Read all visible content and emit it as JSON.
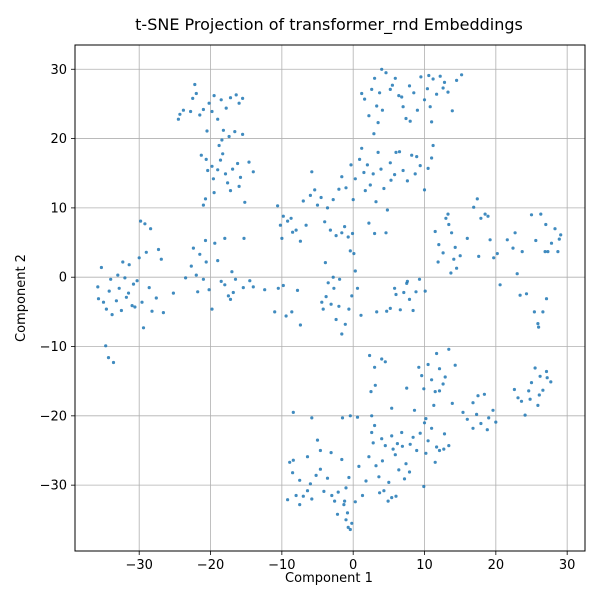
{
  "chart_data": {
    "type": "scatter",
    "title": "t-SNE Projection of transformer_rnd Embeddings",
    "xlabel": "Component 1",
    "ylabel": "Component 2",
    "xlim": [
      -39,
      32.5
    ],
    "ylim": [
      -39.5,
      33.5
    ],
    "xticks": [
      -30,
      -20,
      -10,
      0,
      10,
      20,
      30
    ],
    "yticks": [
      -30,
      -20,
      -10,
      0,
      10,
      20,
      30
    ],
    "grid": true,
    "point_color": "#1f77b4",
    "points": [
      [
        -24.5,
        22.8
      ],
      [
        -24.3,
        23.5
      ],
      [
        -23.8,
        24.1
      ],
      [
        -22.5,
        25.8
      ],
      [
        -22.2,
        27.8
      ],
      [
        -22.0,
        26.5
      ],
      [
        -21.5,
        23.4
      ],
      [
        -21.0,
        24.2
      ],
      [
        -20.2,
        25.1
      ],
      [
        -19.8,
        23.9
      ],
      [
        -19.5,
        26.2
      ],
      [
        -18.5,
        25.6
      ],
      [
        -17.8,
        24.4
      ],
      [
        -17.2,
        25.9
      ],
      [
        -16.4,
        26.3
      ],
      [
        -16.0,
        25.1
      ],
      [
        -15.5,
        25.8
      ],
      [
        -19.0,
        22.8
      ],
      [
        -20.5,
        21.1
      ],
      [
        -22.8,
        23.9
      ],
      [
        -21.3,
        17.6
      ],
      [
        -20.6,
        17.0
      ],
      [
        -20.4,
        15.4
      ],
      [
        -19.8,
        16.0
      ],
      [
        -19.6,
        14.2
      ],
      [
        -19.0,
        15.5
      ],
      [
        -18.6,
        16.9
      ],
      [
        -18.3,
        17.8
      ],
      [
        -17.9,
        14.9
      ],
      [
        -17.6,
        13.6
      ],
      [
        -17.2,
        12.5
      ],
      [
        -16.9,
        15.6
      ],
      [
        -16.2,
        16.4
      ],
      [
        -15.8,
        14.4
      ],
      [
        -18.2,
        21.2
      ],
      [
        -17.4,
        20.3
      ],
      [
        -16.6,
        21.0
      ],
      [
        -15.5,
        20.6
      ],
      [
        -20.7,
        11.3
      ],
      [
        -21.0,
        10.4
      ],
      [
        -18.8,
        19.0
      ],
      [
        -19.5,
        12.2
      ],
      [
        -16.0,
        13.1
      ],
      [
        -14.6,
        16.6
      ],
      [
        -14.0,
        15.2
      ],
      [
        -15.2,
        10.8
      ],
      [
        -18.4,
        19.8
      ],
      [
        -35.8,
        -1.4
      ],
      [
        -35.3,
        1.4
      ],
      [
        -35.0,
        -3.6
      ],
      [
        -34.6,
        -4.6
      ],
      [
        -34.2,
        -2.0
      ],
      [
        -34.0,
        -0.3
      ],
      [
        -33.8,
        -5.4
      ],
      [
        -33.2,
        -3.4
      ],
      [
        -32.8,
        -1.6
      ],
      [
        -32.5,
        -4.8
      ],
      [
        -32.3,
        2.2
      ],
      [
        -32.0,
        -0.1
      ],
      [
        -31.8,
        -2.9
      ],
      [
        -31.4,
        1.8
      ],
      [
        -31.0,
        -4.1
      ],
      [
        -30.8,
        -1.0
      ],
      [
        -30.3,
        -0.5
      ],
      [
        -30.0,
        2.8
      ],
      [
        -29.6,
        -3.6
      ],
      [
        -29.4,
        -7.3
      ],
      [
        -29.0,
        3.6
      ],
      [
        -28.6,
        -1.5
      ],
      [
        -28.2,
        -4.9
      ],
      [
        -27.6,
        -3.0
      ],
      [
        -27.3,
        4.0
      ],
      [
        -26.9,
        2.6
      ],
      [
        -26.6,
        -5.1
      ],
      [
        -29.8,
        8.1
      ],
      [
        -29.2,
        7.7
      ],
      [
        -28.4,
        7.0
      ],
      [
        -34.7,
        -9.9
      ],
      [
        -34.3,
        -11.6
      ],
      [
        -33.6,
        -12.3
      ],
      [
        -30.6,
        -4.3
      ],
      [
        -31.5,
        -2.3
      ],
      [
        -33.0,
        0.3
      ],
      [
        -35.7,
        -3.1
      ],
      [
        -22.7,
        1.6
      ],
      [
        -22.0,
        0.3
      ],
      [
        -21.5,
        3.3
      ],
      [
        -21.0,
        -0.3
      ],
      [
        -20.6,
        2.2
      ],
      [
        -20.2,
        -1.8
      ],
      [
        -19.8,
        -4.6
      ],
      [
        -19.4,
        4.9
      ],
      [
        -19.0,
        2.4
      ],
      [
        -18.5,
        -0.6
      ],
      [
        -18.0,
        -1.1
      ],
      [
        -17.5,
        -2.7
      ],
      [
        -17.0,
        0.8
      ],
      [
        -16.5,
        -0.3
      ],
      [
        -15.4,
        -1.5
      ],
      [
        -14.5,
        -0.5
      ],
      [
        -14.0,
        -1.4
      ],
      [
        -22.4,
        4.2
      ],
      [
        -20.7,
        5.3
      ],
      [
        -18.0,
        5.6
      ],
      [
        -21.8,
        -2.1
      ],
      [
        -23.5,
        -0.1
      ],
      [
        -25.2,
        -2.3
      ],
      [
        -17.2,
        -3.2
      ],
      [
        -15.3,
        5.6
      ],
      [
        -16.8,
        -2.2
      ],
      [
        -10.6,
        10.3
      ],
      [
        -10.2,
        7.5
      ],
      [
        -9.8,
        8.8
      ],
      [
        -9.2,
        8.1
      ],
      [
        -8.7,
        8.5
      ],
      [
        -8.0,
        6.8
      ],
      [
        -7.4,
        5.2
      ],
      [
        -6.6,
        7.5
      ],
      [
        -6.0,
        11.8
      ],
      [
        -5.4,
        12.6
      ],
      [
        -5.0,
        10.4
      ],
      [
        -4.5,
        11.5
      ],
      [
        -4.0,
        8.0
      ],
      [
        -3.6,
        10.0
      ],
      [
        -3.2,
        6.8
      ],
      [
        -2.8,
        11.2
      ],
      [
        -2.4,
        6.0
      ],
      [
        -2.0,
        12.7
      ],
      [
        -1.6,
        6.4
      ],
      [
        -7.0,
        11.0
      ],
      [
        -5.8,
        15.2
      ],
      [
        -8.5,
        6.5
      ],
      [
        -10.0,
        5.6
      ],
      [
        -1.2,
        7.3
      ],
      [
        -12.4,
        -1.8
      ],
      [
        -11.0,
        -5.0
      ],
      [
        -10.5,
        -1.6
      ],
      [
        -9.8,
        -1.2
      ],
      [
        -9.4,
        -5.6
      ],
      [
        -8.6,
        -5.0
      ],
      [
        -7.8,
        -1.9
      ],
      [
        -7.4,
        -6.9
      ],
      [
        -4.2,
        -4.6
      ],
      [
        -3.8,
        -2.8
      ],
      [
        -3.5,
        -0.8
      ],
      [
        -3.1,
        -3.9
      ],
      [
        -2.7,
        -1.6
      ],
      [
        -2.4,
        -6.1
      ],
      [
        -2.0,
        -4.2
      ],
      [
        -1.6,
        -8.2
      ],
      [
        -1.1,
        -6.8
      ],
      [
        -0.6,
        -4.6
      ],
      [
        -0.2,
        -2.7
      ],
      [
        0.1,
        3.4
      ],
      [
        0.3,
        0.9
      ],
      [
        0.6,
        -1.6
      ],
      [
        1.1,
        -5.5
      ],
      [
        -0.7,
        5.8
      ],
      [
        -3.9,
        2.1
      ],
      [
        -1.9,
        -0.3
      ],
      [
        -2.8,
        0.0
      ],
      [
        -4.4,
        -3.6
      ],
      [
        -1.6,
        14.5
      ],
      [
        -1.0,
        12.9
      ],
      [
        -0.3,
        16.2
      ],
      [
        0.3,
        14.2
      ],
      [
        0.9,
        17.0
      ],
      [
        1.5,
        15.1
      ],
      [
        2.0,
        16.2
      ],
      [
        2.4,
        13.3
      ],
      [
        2.8,
        14.9
      ],
      [
        3.2,
        10.9
      ],
      [
        3.5,
        18.0
      ],
      [
        3.9,
        15.6
      ],
      [
        4.3,
        12.8
      ],
      [
        4.8,
        9.7
      ],
      [
        5.2,
        16.5
      ],
      [
        5.8,
        14.8
      ],
      [
        6.5,
        18.1
      ],
      [
        7.0,
        15.4
      ],
      [
        7.6,
        13.9
      ],
      [
        8.2,
        17.6
      ],
      [
        8.7,
        14.9
      ],
      [
        9.4,
        16.1
      ],
      [
        10.0,
        12.6
      ],
      [
        10.5,
        15.7
      ],
      [
        11.0,
        17.2
      ],
      [
        0.0,
        11.2
      ],
      [
        1.2,
        18.6
      ],
      [
        2.2,
        7.8
      ],
      [
        3.0,
        6.3
      ],
      [
        4.6,
        6.4
      ],
      [
        -0.1,
        6.3
      ],
      [
        -0.4,
        3.8
      ],
      [
        1.7,
        12.5
      ],
      [
        6.0,
        18.0
      ],
      [
        8.9,
        17.4
      ],
      [
        5.3,
        14.0
      ],
      [
        1.6,
        25.7
      ],
      [
        2.2,
        23.3
      ],
      [
        2.6,
        27.1
      ],
      [
        3.0,
        28.7
      ],
      [
        3.3,
        24.7
      ],
      [
        3.7,
        26.6
      ],
      [
        4.1,
        24.1
      ],
      [
        4.6,
        29.5
      ],
      [
        5.2,
        27.1
      ],
      [
        5.9,
        28.7
      ],
      [
        6.4,
        26.2
      ],
      [
        7.0,
        24.6
      ],
      [
        7.4,
        22.9
      ],
      [
        8.0,
        22.5
      ],
      [
        8.5,
        26.6
      ],
      [
        9.0,
        24.1
      ],
      [
        2.9,
        20.7
      ],
      [
        4.0,
        30.0
      ],
      [
        6.8,
        26.0
      ],
      [
        3.5,
        22.3
      ],
      [
        1.2,
        26.5
      ],
      [
        7.9,
        27.6
      ],
      [
        5.5,
        27.7
      ],
      [
        9.5,
        28.9
      ],
      [
        10.0,
        25.6
      ],
      [
        10.4,
        27.2
      ],
      [
        10.8,
        24.6
      ],
      [
        11.2,
        28.6
      ],
      [
        11.7,
        26.4
      ],
      [
        12.2,
        29.0
      ],
      [
        12.8,
        28.1
      ],
      [
        13.3,
        26.7
      ],
      [
        13.9,
        24.0
      ],
      [
        14.5,
        28.4
      ],
      [
        11.0,
        22.4
      ],
      [
        15.2,
        29.2
      ],
      [
        10.6,
        29.1
      ],
      [
        12.6,
        27.3
      ],
      [
        11.2,
        19.0
      ],
      [
        11.5,
        6.6
      ],
      [
        12.0,
        4.7
      ],
      [
        13.0,
        8.5
      ],
      [
        13.4,
        7.6
      ],
      [
        13.8,
        6.4
      ],
      [
        14.3,
        4.3
      ],
      [
        15.0,
        3.1
      ],
      [
        13.7,
        0.6
      ],
      [
        14.1,
        2.6
      ],
      [
        12.6,
        3.5
      ],
      [
        11.9,
        2.2
      ],
      [
        13.3,
        9.1
      ],
      [
        16.0,
        5.6
      ],
      [
        14.5,
        1.3
      ],
      [
        16.9,
        10.1
      ],
      [
        17.4,
        11.3
      ],
      [
        17.9,
        8.5
      ],
      [
        18.5,
        9.1
      ],
      [
        19.2,
        5.4
      ],
      [
        19.7,
        2.8
      ],
      [
        20.2,
        3.4
      ],
      [
        20.6,
        -1.1
      ],
      [
        21.6,
        5.4
      ],
      [
        22.4,
        4.2
      ],
      [
        23.0,
        0.5
      ],
      [
        23.4,
        -2.6
      ],
      [
        23.7,
        3.7
      ],
      [
        22.7,
        6.4
      ],
      [
        24.3,
        -2.4
      ],
      [
        25.0,
        9.0
      ],
      [
        17.6,
        3.0
      ],
      [
        18.9,
        8.8
      ],
      [
        25.4,
        -5.0
      ],
      [
        25.9,
        -6.7
      ],
      [
        26.3,
        9.1
      ],
      [
        26.6,
        -5.0
      ],
      [
        27.0,
        7.6
      ],
      [
        27.3,
        3.7
      ],
      [
        27.8,
        4.9
      ],
      [
        28.3,
        7.0
      ],
      [
        28.7,
        3.7
      ],
      [
        29.1,
        6.1
      ],
      [
        26.0,
        -7.2
      ],
      [
        25.6,
        5.3
      ],
      [
        27.1,
        -3.1
      ],
      [
        28.9,
        5.5
      ],
      [
        26.9,
        3.7
      ],
      [
        6.0,
        -2.5
      ],
      [
        6.6,
        -4.7
      ],
      [
        7.1,
        -2.2
      ],
      [
        7.5,
        -0.9
      ],
      [
        7.9,
        -3.2
      ],
      [
        8.4,
        -4.8
      ],
      [
        8.8,
        -2.1
      ],
      [
        9.3,
        -0.3
      ],
      [
        10.1,
        -2.0
      ],
      [
        5.2,
        -4.5
      ],
      [
        4.7,
        -4.9
      ],
      [
        3.3,
        -5.0
      ],
      [
        5.8,
        -1.6
      ],
      [
        7.6,
        -0.6
      ],
      [
        4.0,
        -11.8
      ],
      [
        4.5,
        -12.2
      ],
      [
        2.3,
        -11.3
      ],
      [
        3.0,
        -13.0
      ],
      [
        2.5,
        -16.5
      ],
      [
        3.1,
        -15.6
      ],
      [
        2.6,
        -20.0
      ],
      [
        5.4,
        -18.9
      ],
      [
        7.5,
        -16.0
      ],
      [
        9.2,
        -13.0
      ],
      [
        8.6,
        -19.2
      ],
      [
        9.9,
        -16.1
      ],
      [
        10.5,
        -12.6
      ],
      [
        11.0,
        -14.8
      ],
      [
        11.5,
        -16.5
      ],
      [
        12.1,
        -13.2
      ],
      [
        12.6,
        -15.4
      ],
      [
        13.4,
        -10.4
      ],
      [
        13.9,
        -18.2
      ],
      [
        14.3,
        -12.7
      ],
      [
        10.2,
        -20.4
      ],
      [
        11.3,
        -18.5
      ],
      [
        12.8,
        -22.6
      ],
      [
        10.0,
        -21.0
      ],
      [
        12.1,
        -16.4
      ],
      [
        12.9,
        -14.4
      ],
      [
        9.6,
        -14.2
      ],
      [
        11.7,
        -11.0
      ],
      [
        15.4,
        -19.5
      ],
      [
        16.0,
        -20.5
      ],
      [
        16.8,
        -18.1
      ],
      [
        17.3,
        -19.8
      ],
      [
        17.9,
        -21.1
      ],
      [
        18.4,
        -16.9
      ],
      [
        19.0,
        -20.3
      ],
      [
        19.6,
        -19.2
      ],
      [
        20.0,
        -20.9
      ],
      [
        17.5,
        -17.1
      ],
      [
        16.8,
        -21.8
      ],
      [
        18.8,
        -22.0
      ],
      [
        22.6,
        -16.2
      ],
      [
        23.6,
        -17.9
      ],
      [
        24.1,
        -19.9
      ],
      [
        24.6,
        -16.4
      ],
      [
        25.0,
        -15.2
      ],
      [
        25.5,
        -13.1
      ],
      [
        26.1,
        -17.0
      ],
      [
        26.6,
        -16.3
      ],
      [
        27.2,
        -14.5
      ],
      [
        27.7,
        -15.1
      ],
      [
        24.8,
        -17.6
      ],
      [
        25.9,
        -18.5
      ],
      [
        27.1,
        -13.6
      ],
      [
        26.2,
        -14.3
      ],
      [
        23.1,
        -17.4
      ],
      [
        -8.9,
        -26.7
      ],
      [
        -8.5,
        -28.2
      ],
      [
        -8.0,
        -31.5
      ],
      [
        -7.5,
        -32.8
      ],
      [
        -7.0,
        -31.6
      ],
      [
        -6.4,
        -30.8
      ],
      [
        -5.8,
        -32.0
      ],
      [
        -5.2,
        -28.6
      ],
      [
        -4.6,
        -27.7
      ],
      [
        -4.1,
        -30.9
      ],
      [
        -3.6,
        -29.0
      ],
      [
        -3.0,
        -31.5
      ],
      [
        -2.6,
        -32.3
      ],
      [
        -2.1,
        -31.0
      ],
      [
        -1.6,
        -26.3
      ],
      [
        -1.0,
        -30.4
      ],
      [
        -0.6,
        -28.9
      ],
      [
        -1.3,
        -32.8
      ],
      [
        -0.8,
        -34.0
      ],
      [
        -0.2,
        -35.5
      ],
      [
        0.3,
        -32.4
      ],
      [
        -0.7,
        -36.1
      ],
      [
        -0.4,
        -36.4
      ],
      [
        -1.0,
        -35.0
      ],
      [
        -9.2,
        -32.1
      ],
      [
        -8.4,
        -26.4
      ],
      [
        -6.4,
        -25.9
      ],
      [
        -5.0,
        -23.5
      ],
      [
        -1.5,
        -20.3
      ],
      [
        -0.4,
        -20.0
      ],
      [
        -5.8,
        -20.3
      ],
      [
        -8.4,
        -19.5
      ],
      [
        -7.5,
        -29.3
      ],
      [
        -6.0,
        -29.8
      ],
      [
        -4.6,
        -25.0
      ],
      [
        -3.1,
        -25.3
      ],
      [
        -1.2,
        -32.3
      ],
      [
        -2.2,
        -34.2
      ],
      [
        0.8,
        -27.3
      ],
      [
        1.3,
        -31.5
      ],
      [
        1.8,
        -29.4
      ],
      [
        2.2,
        -25.9
      ],
      [
        2.8,
        -23.9
      ],
      [
        3.2,
        -27.2
      ],
      [
        3.7,
        -31.1
      ],
      [
        4.1,
        -26.5
      ],
      [
        4.5,
        -24.3
      ],
      [
        5.0,
        -29.6
      ],
      [
        5.4,
        -22.9
      ],
      [
        5.9,
        -25.6
      ],
      [
        6.4,
        -27.8
      ],
      [
        6.9,
        -24.4
      ],
      [
        7.4,
        -26.9
      ],
      [
        7.9,
        -28.1
      ],
      [
        8.4,
        -23.1
      ],
      [
        8.9,
        -25.0
      ],
      [
        9.4,
        -22.5
      ],
      [
        9.9,
        -30.2
      ],
      [
        10.5,
        -23.6
      ],
      [
        11.0,
        -21.8
      ],
      [
        11.5,
        -26.7
      ],
      [
        12.1,
        -25.0
      ],
      [
        12.7,
        -24.8
      ],
      [
        13.4,
        -24.3
      ],
      [
        3.0,
        -21.4
      ],
      [
        3.6,
        -28.8
      ],
      [
        4.9,
        -32.3
      ],
      [
        5.4,
        -31.8
      ],
      [
        6.0,
        -31.6
      ],
      [
        4.3,
        -30.8
      ],
      [
        6.2,
        -24.0
      ],
      [
        7.2,
        -29.1
      ],
      [
        8.0,
        -24.1
      ],
      [
        10.2,
        -25.4
      ],
      [
        11.7,
        -24.5
      ],
      [
        0.6,
        -20.2
      ],
      [
        2.6,
        -22.4
      ],
      [
        4.0,
        -23.3
      ],
      [
        5.6,
        -24.8
      ],
      [
        6.8,
        -22.4
      ]
    ]
  }
}
